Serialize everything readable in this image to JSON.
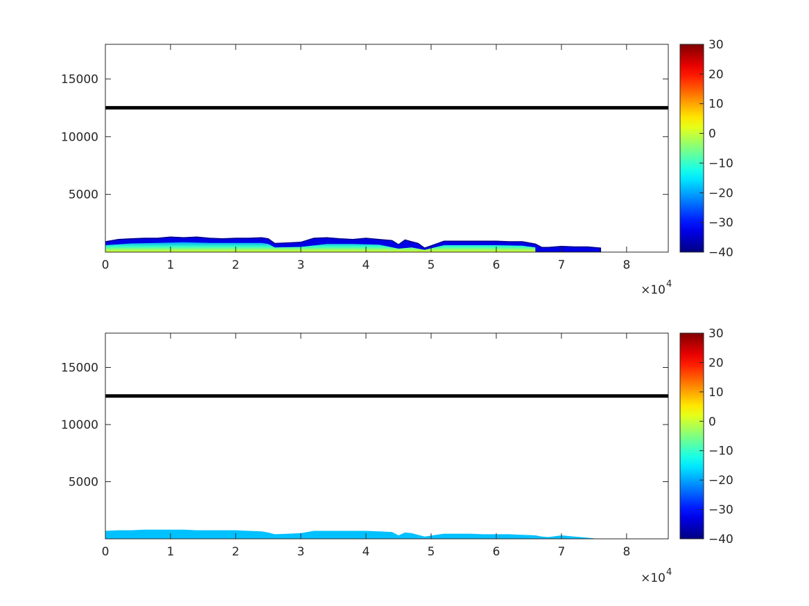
{
  "chart_data": [
    {
      "type": "heatmap",
      "title": "",
      "xlabel": "",
      "ylabel": "",
      "xlim": [
        0,
        86400
      ],
      "ylim": [
        0,
        18000
      ],
      "xtick_values": [
        0,
        10000,
        20000,
        30000,
        40000,
        50000,
        60000,
        70000,
        80000
      ],
      "xtick_labels": [
        "0",
        "1",
        "2",
        "3",
        "4",
        "5",
        "6",
        "7",
        "8"
      ],
      "x_exponent_label": "×10",
      "x_exponent_power": "4",
      "ytick_values": [
        5000,
        10000,
        15000
      ],
      "ytick_labels": [
        "5000",
        "10000",
        "15000"
      ],
      "grid": false,
      "colormap": "jet",
      "clim": [
        -40,
        30
      ],
      "colorbar_tick_values": [
        -40,
        -30,
        -20,
        -10,
        0,
        10,
        20,
        30
      ],
      "colorbar_tick_labels": [
        "-40",
        "-30",
        "-20",
        "-10",
        "0",
        "10",
        "20",
        "30"
      ],
      "reference_line": {
        "y": 12500,
        "color": "#000000"
      },
      "echo_layer_top": {
        "x": [
          0,
          2000,
          4000,
          6000,
          8000,
          10000,
          12000,
          14000,
          16000,
          18000,
          20000,
          22000,
          24000,
          25000,
          26000,
          28000,
          30000,
          32000,
          34000,
          36000,
          38000,
          40000,
          42000,
          44000,
          45000,
          46000,
          47000,
          48000,
          49000,
          52000,
          54000,
          56000,
          58000,
          60000,
          62000,
          64000,
          66000,
          67000,
          68000,
          70000,
          72000,
          74000,
          76000
        ],
        "y": [
          900,
          1100,
          1150,
          1200,
          1200,
          1300,
          1250,
          1300,
          1200,
          1150,
          1200,
          1200,
          1250,
          1150,
          750,
          800,
          850,
          1200,
          1250,
          1150,
          1100,
          1200,
          1100,
          1000,
          650,
          1050,
          900,
          750,
          350,
          950,
          950,
          950,
          950,
          950,
          900,
          900,
          700,
          400,
          400,
          500,
          450,
          450,
          350
        ],
        "gaps": [
          [
            49200,
            52000
          ]
        ],
        "color_value": -33
      },
      "echo_core_top": {
        "x": [
          0,
          4000,
          8000,
          12000,
          16000,
          20000,
          24000,
          25000,
          26000,
          30000,
          34000,
          38000,
          42000,
          45000,
          47000,
          49000,
          52000,
          56000,
          60000,
          64000,
          66000
        ],
        "y": [
          600,
          750,
          800,
          850,
          800,
          800,
          800,
          700,
          400,
          450,
          700,
          700,
          650,
          300,
          400,
          200,
          600,
          600,
          600,
          550,
          400
        ],
        "gaps": [
          [
            49200,
            52000
          ]
        ],
        "color_value": 2
      }
    },
    {
      "type": "heatmap",
      "title": "",
      "xlabel": "",
      "ylabel": "",
      "xlim": [
        0,
        86400
      ],
      "ylim": [
        0,
        18000
      ],
      "xtick_values": [
        0,
        10000,
        20000,
        30000,
        40000,
        50000,
        60000,
        70000,
        80000
      ],
      "xtick_labels": [
        "0",
        "1",
        "2",
        "3",
        "4",
        "5",
        "6",
        "7",
        "8"
      ],
      "x_exponent_label": "×10",
      "x_exponent_power": "4",
      "ytick_values": [
        5000,
        10000,
        15000
      ],
      "ytick_labels": [
        "5000",
        "10000",
        "15000"
      ],
      "grid": false,
      "colormap": "jet",
      "clim": [
        -40,
        30
      ],
      "colorbar_tick_values": [
        -40,
        -30,
        -20,
        -10,
        0,
        10,
        20,
        30
      ],
      "colorbar_tick_labels": [
        "-40",
        "-30",
        "-20",
        "-10",
        "0",
        "10",
        "20",
        "30"
      ],
      "reference_line": {
        "y": 12500,
        "color": "#000000"
      },
      "echo_layer_top": {
        "x": [
          0,
          2000,
          4000,
          6000,
          8000,
          10000,
          12000,
          14000,
          16000,
          18000,
          20000,
          22000,
          24000,
          25000,
          26000,
          28000,
          30000,
          32000,
          34000,
          36000,
          38000,
          40000,
          42000,
          44000,
          45000,
          46000,
          47000,
          48000,
          49000,
          52000,
          54000,
          56000,
          58000,
          60000,
          62000,
          64000,
          66000,
          67000,
          68000,
          70000,
          72000,
          74000,
          75000
        ],
        "y": [
          700,
          750,
          750,
          800,
          800,
          800,
          800,
          750,
          750,
          750,
          750,
          700,
          650,
          550,
          400,
          450,
          500,
          700,
          700,
          700,
          700,
          700,
          650,
          600,
          300,
          550,
          500,
          350,
          200,
          450,
          450,
          450,
          400,
          400,
          400,
          350,
          300,
          200,
          150,
          300,
          200,
          100,
          50
        ],
        "gaps": [
          [
            49200,
            52000
          ]
        ],
        "color_value": -18
      }
    }
  ]
}
